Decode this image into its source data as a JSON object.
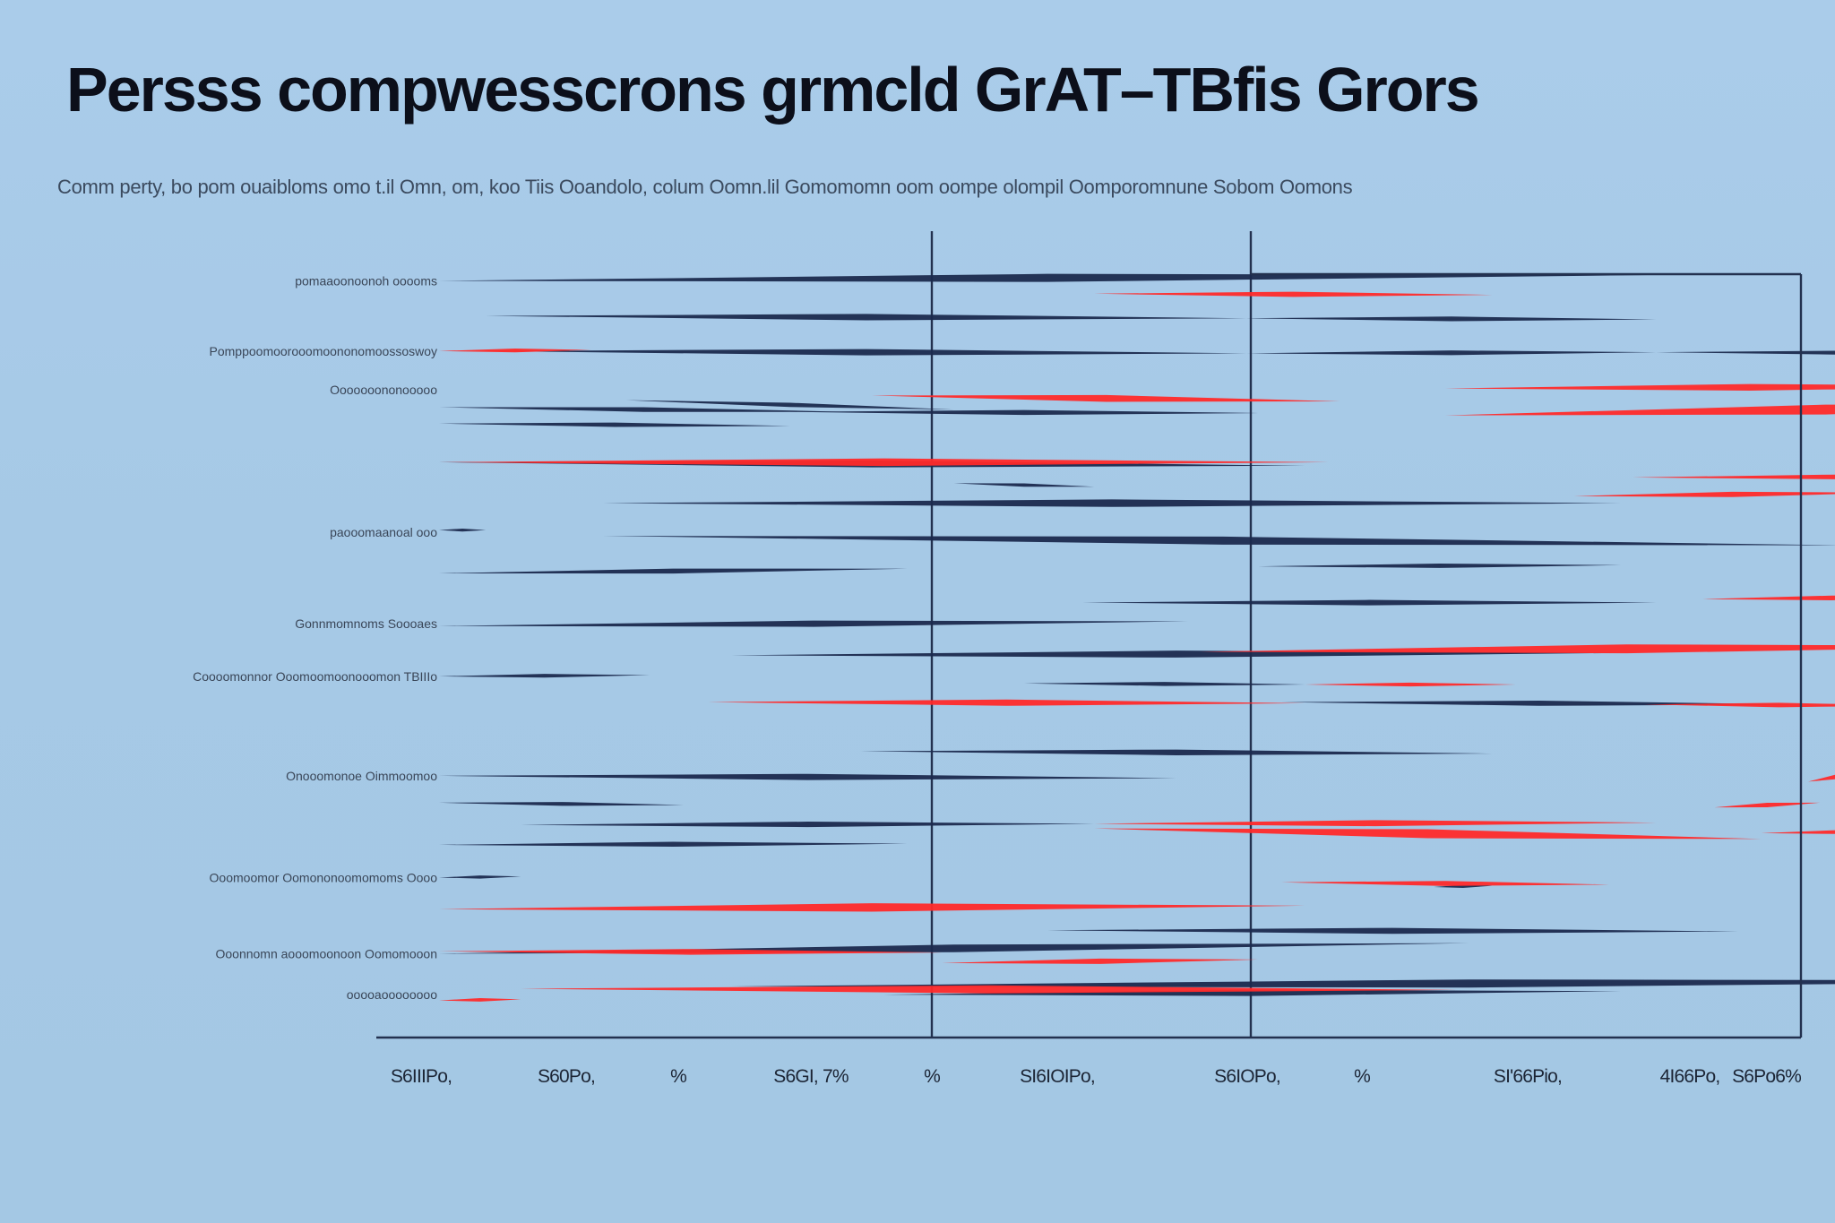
{
  "title": "Persss compwesscrons grmcld GrAT–TBfis Grors",
  "subtitle": "Comm perty, bo pom ouaibloms omo t.il Omn, om, koo Tiis Ooandolo, colum Oomn.lil Gomomomn oom oompe olompil Oomporomnune Sobom Oomons",
  "colors": {
    "background": "#a9cbe6",
    "navy": "#1b2a4e",
    "red": "#ff2a2a",
    "axis": "#23314f"
  },
  "chart_data": {
    "type": "bar",
    "orientation": "horizontal",
    "x_tick_labels": [
      "S6IIIPo,",
      "S60Po,",
      "%",
      "S6GI, 7%",
      "%",
      "SI6IOIPo,",
      "S6IOPo,",
      "%",
      "SI'66Pio,",
      "4I66Po,",
      "S6Po6%"
    ],
    "category_labels": [
      {
        "text": "pomaaoonoonoh ooooms",
        "y": 240
      },
      {
        "text": "Pomppoomoorooomoononomoossoswoy",
        "y": 300
      },
      {
        "text": "Ooooooononooooo",
        "y": 333
      },
      {
        "text": "paooomaanoal ooo",
        "y": 455
      },
      {
        "text": "Gonnmomnoms Soooaes",
        "y": 533
      },
      {
        "text": "Coooomonnor Ooomoomoonooomon TBIIIo",
        "y": 578
      },
      {
        "text": "Onooomonoe Oimmoomoo",
        "y": 663
      },
      {
        "text": "Ooomoomor Oomononoomomoms Oooo",
        "y": 750
      },
      {
        "text": "Ooonnomn aooomoonoon Oomomooon",
        "y": 815
      },
      {
        "text": "ooooaoooooooo",
        "y": 850
      }
    ],
    "navy_series": [
      [
        0,
        240,
        1040,
        235
      ],
      [
        40,
        270,
        690,
        272
      ],
      [
        690,
        272,
        1040,
        273
      ],
      [
        40,
        300,
        690,
        302
      ],
      [
        690,
        302,
        1040,
        301
      ],
      [
        1040,
        301,
        1440,
        302
      ],
      [
        0,
        348,
        350,
        352
      ],
      [
        160,
        342,
        440,
        350
      ],
      [
        0,
        362,
        300,
        364
      ],
      [
        300,
        352,
        700,
        353
      ],
      [
        0,
        395,
        740,
        398
      ],
      [
        440,
        413,
        560,
        416
      ],
      [
        140,
        430,
        1010,
        430
      ],
      [
        0,
        453,
        40,
        453
      ],
      [
        140,
        458,
        1200,
        466
      ],
      [
        0,
        490,
        400,
        486
      ],
      [
        700,
        484,
        1010,
        483
      ],
      [
        550,
        515,
        1040,
        515
      ],
      [
        0,
        535,
        640,
        531
      ],
      [
        250,
        560,
        1010,
        558
      ],
      [
        0,
        578,
        180,
        577
      ],
      [
        500,
        584,
        740,
        585
      ],
      [
        720,
        600,
        1160,
        602
      ],
      [
        360,
        642,
        900,
        644
      ],
      [
        0,
        663,
        630,
        665
      ],
      [
        0,
        686,
        210,
        688
      ],
      [
        70,
        705,
        560,
        704
      ],
      [
        0,
        722,
        400,
        721
      ],
      [
        0,
        750,
        70,
        749
      ],
      [
        850,
        758,
        900,
        757
      ],
      [
        520,
        795,
        1110,
        796
      ],
      [
        0,
        815,
        880,
        806
      ],
      [
        250,
        843,
        1510,
        838
      ],
      [
        380,
        850,
        1010,
        847
      ]
    ],
    "red_series": [
      [
        0,
        300,
        130,
        299
      ],
      [
        560,
        251,
        900,
        252
      ],
      [
        860,
        332,
        1380,
        330
      ],
      [
        370,
        338,
        770,
        343
      ],
      [
        860,
        355,
        1510,
        345
      ],
      [
        1500,
        363,
        1550,
        361
      ],
      [
        0,
        395,
        760,
        395
      ],
      [
        1260,
        385,
        1560,
        381
      ],
      [
        1020,
        408,
        1440,
        407
      ],
      [
        1350,
        414,
        1520,
        407
      ],
      [
        970,
        424,
        1240,
        421
      ],
      [
        1330,
        461,
        1510,
        443
      ],
      [
        1230,
        507,
        1380,
        494
      ],
      [
        1320,
        490,
        1460,
        488
      ],
      [
        1080,
        512,
        1300,
        510
      ],
      [
        1360,
        537,
        1430,
        530
      ],
      [
        650,
        557,
        1380,
        552
      ],
      [
        740,
        585,
        920,
        585
      ],
      [
        1300,
        594,
        1350,
        589
      ],
      [
        230,
        600,
        740,
        601
      ],
      [
        1030,
        602,
        1260,
        603
      ],
      [
        1240,
        626,
        1310,
        618
      ],
      [
        1170,
        668,
        1240,
        656
      ],
      [
        1090,
        690,
        1180,
        686
      ],
      [
        560,
        704,
        1040,
        703
      ],
      [
        560,
        708,
        1130,
        717
      ],
      [
        1130,
        712,
        1270,
        710
      ],
      [
        720,
        754,
        1000,
        756
      ],
      [
        0,
        777,
        740,
        774
      ],
      [
        0,
        813,
        430,
        814
      ],
      [
        430,
        823,
        700,
        820
      ],
      [
        70,
        845,
        870,
        846
      ],
      [
        0,
        855,
        70,
        854
      ]
    ]
  }
}
